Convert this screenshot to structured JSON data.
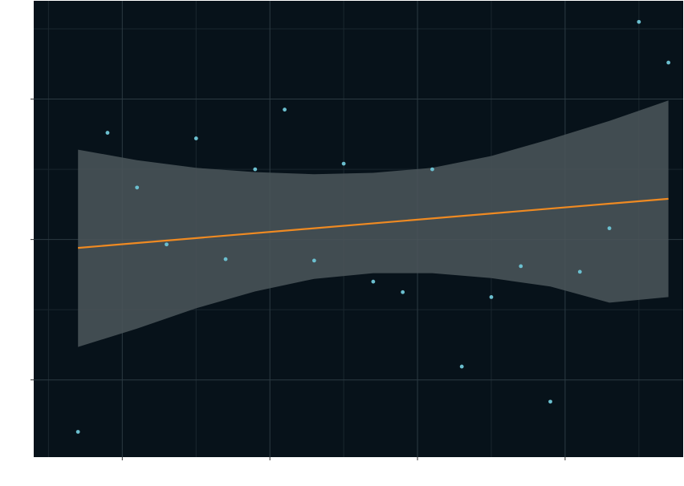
{
  "colors": {
    "panel_background": "#07121a",
    "grid_major": "#2c3a42",
    "grid_minor": "#1a262e",
    "band_fill": "#4a5459",
    "trend_line": "#ef8a22",
    "points": "#6bbfcf",
    "axis_ticks": "#333333"
  },
  "chart_data": {
    "type": "scatter",
    "title": "",
    "xlabel": "",
    "ylabel": "",
    "xlim": [
      -0.5,
      21.5
    ],
    "ylim": [
      -3.1,
      3.4
    ],
    "x_major_ticks": [
      2.5,
      7.5,
      12.5,
      17.5
    ],
    "x_minor_ticks": [
      0,
      5,
      10,
      15,
      20
    ],
    "y_major_ticks": [
      -2,
      0,
      2
    ],
    "y_minor_ticks": [
      -1,
      1,
      3
    ],
    "tick_labels_visible": false,
    "grid": true,
    "legend": "none",
    "series": [
      {
        "kind": "points",
        "x": [
          1,
          2,
          3,
          4,
          5,
          6,
          7,
          8,
          9,
          10,
          11,
          12,
          13,
          14,
          15,
          16,
          17,
          18,
          19,
          20,
          21
        ],
        "y": [
          -2.74,
          1.52,
          0.74,
          -0.07,
          1.44,
          -0.28,
          1.0,
          1.85,
          -0.3,
          1.08,
          -0.6,
          -0.75,
          1.0,
          -1.81,
          -0.82,
          -0.38,
          -2.31,
          -0.46,
          0.16,
          3.1,
          2.52
        ]
      },
      {
        "kind": "trend",
        "x": [
          1,
          21
        ],
        "y": [
          -0.12,
          0.58
        ]
      },
      {
        "kind": "confidence_band",
        "x": [
          1,
          3,
          5,
          7,
          9,
          11,
          13,
          15,
          17,
          19,
          21
        ],
        "lower": [
          -1.53,
          -1.27,
          -0.98,
          -0.74,
          -0.56,
          -0.48,
          -0.48,
          -0.55,
          -0.67,
          -0.9,
          -0.82
        ],
        "upper": [
          1.28,
          1.13,
          1.02,
          0.96,
          0.93,
          0.95,
          1.02,
          1.19,
          1.43,
          1.69,
          1.98
        ]
      }
    ]
  }
}
